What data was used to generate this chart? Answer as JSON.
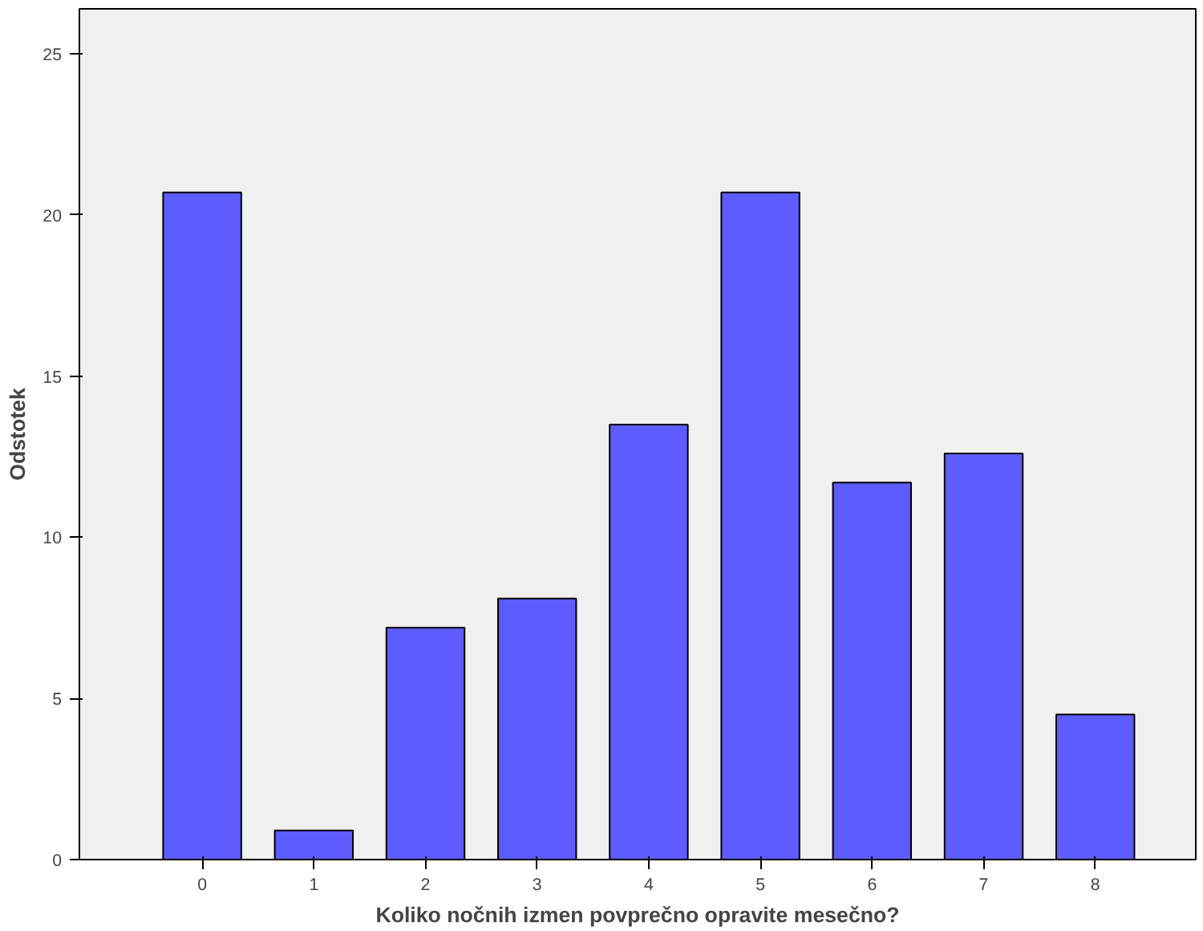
{
  "chart_data": {
    "type": "bar",
    "xlabel": "Koliko nočnih izmen povprečno opravite mesečno?",
    "ylabel": "Odstotek",
    "categories": [
      "0",
      "1",
      "2",
      "3",
      "4",
      "5",
      "6",
      "7",
      "8"
    ],
    "values": [
      20.7,
      0.9,
      7.2,
      8.1,
      13.5,
      20.7,
      11.7,
      12.6,
      4.5
    ],
    "color": "#5c5cff",
    "ylim": [
      0,
      26.4
    ],
    "yticks": [
      0,
      5,
      10,
      15,
      20,
      25
    ],
    "grid": false
  }
}
